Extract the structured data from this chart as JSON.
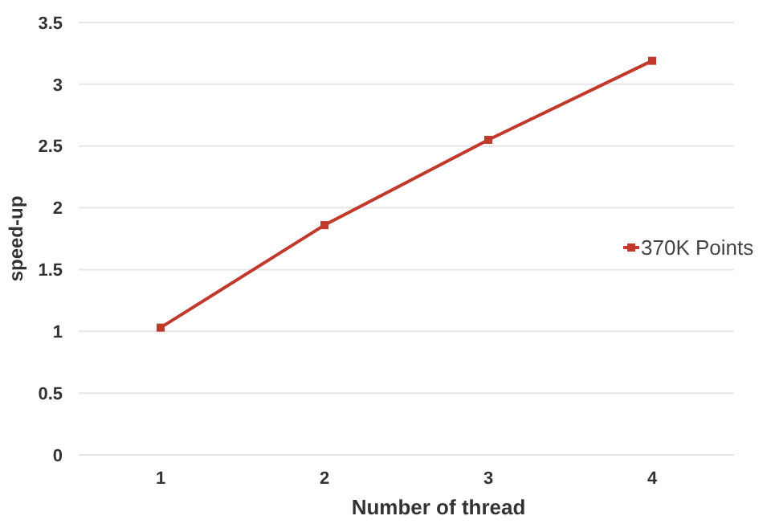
{
  "chart_data": {
    "type": "line",
    "xlabel": "Number of thread",
    "ylabel": "speed-up",
    "categories": [
      "1",
      "2",
      "3",
      "4"
    ],
    "series": [
      {
        "name": "370K Points",
        "color": "#c0392b",
        "values": [
          1.03,
          1.86,
          2.55,
          3.19
        ]
      }
    ],
    "ylim": [
      0,
      3.5
    ],
    "yticks": [
      0,
      0.5,
      1,
      1.5,
      2,
      2.5,
      3,
      3.5
    ],
    "grid": "y",
    "legend": "right",
    "marker": "square",
    "line_style": "solid"
  }
}
